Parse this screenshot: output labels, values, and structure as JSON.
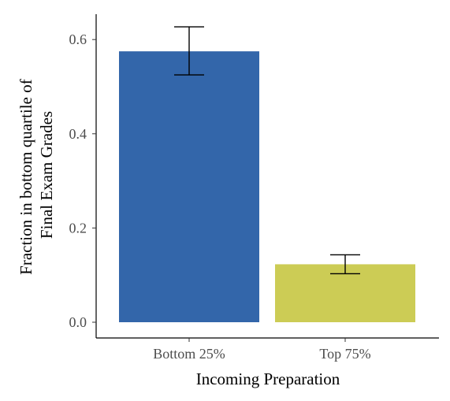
{
  "chart_data": {
    "type": "bar",
    "categories": [
      "Bottom 25%",
      "Top 75%"
    ],
    "values": [
      0.575,
      0.123
    ],
    "error_low": [
      0.525,
      0.103
    ],
    "error_high": [
      0.627,
      0.143
    ],
    "colors": [
      "#3366aa",
      "#cccc55"
    ],
    "xlabel": "Incoming Preparation",
    "ylabel_lines": [
      "Fraction in bottom quartile of",
      "Final Exam Grades"
    ],
    "ylim": [
      0,
      0.66
    ],
    "yticks": [
      0.0,
      0.2,
      0.4,
      0.6
    ],
    "ytick_labels": [
      "0.0",
      "0.2",
      "0.4",
      "0.6"
    ],
    "grid": false
  }
}
